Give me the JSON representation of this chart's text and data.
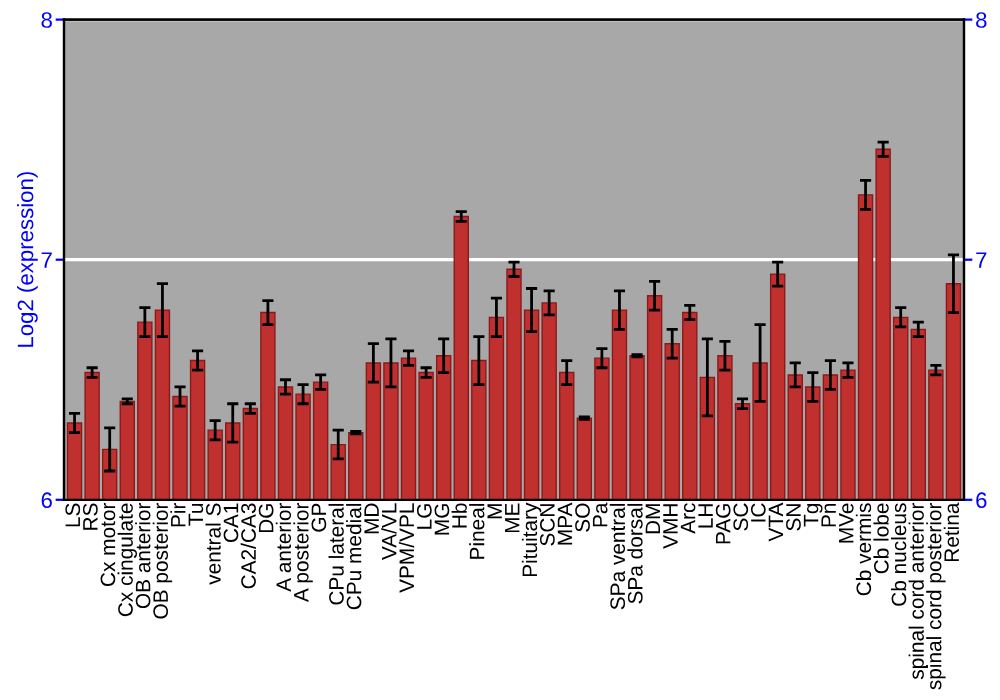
{
  "chart_data": {
    "type": "bar",
    "ylabel": "Log2 (expression)",
    "categories": [
      "LS",
      "RS",
      "Cx motor",
      "Cx cingulate",
      "OB anterior",
      "OB posterior",
      "Pir",
      "Tu",
      "ventral S",
      "CA1",
      "CA2/CA3",
      "DG",
      "A anterior",
      "A posterior",
      "GP",
      "CPu lateral",
      "CPu medial",
      "MD",
      "VA/VL",
      "VPM/VPL",
      "LG",
      "MG",
      "Hb",
      "Pineal",
      "M",
      "ME",
      "Pituitary",
      "SCN",
      "MPA",
      "SO",
      "Pa",
      "SPa ventral",
      "SPa dorsal",
      "DM",
      "VMH",
      "Arc",
      "LH",
      "PAG",
      "SC",
      "IC",
      "VTA",
      "SN",
      "Tg",
      "Pn",
      "MVe",
      "Cb vermis",
      "Cb lobe",
      "Cb nucleus",
      "spinal cord anterior",
      "spinal cord posterior",
      "Retina"
    ],
    "values": [
      6.32,
      6.53,
      6.21,
      6.41,
      6.74,
      6.79,
      6.43,
      6.58,
      6.29,
      6.32,
      6.38,
      6.78,
      6.47,
      6.44,
      6.49,
      6.23,
      6.28,
      6.57,
      6.57,
      6.59,
      6.53,
      6.6,
      7.18,
      6.58,
      6.76,
      6.96,
      6.79,
      6.82,
      6.53,
      6.34,
      6.59,
      6.79,
      6.6,
      6.85,
      6.65,
      6.78,
      6.51,
      6.6,
      6.4,
      6.57,
      6.94,
      6.52,
      6.47,
      6.52,
      6.54,
      7.27,
      7.46,
      6.76,
      6.71,
      6.54,
      6.9
    ],
    "errors": [
      0.04,
      0.02,
      0.09,
      0.01,
      0.06,
      0.11,
      0.04,
      0.04,
      0.04,
      0.08,
      0.02,
      0.05,
      0.03,
      0.04,
      0.03,
      0.06,
      0.005,
      0.08,
      0.1,
      0.03,
      0.02,
      0.07,
      0.02,
      0.1,
      0.08,
      0.03,
      0.09,
      0.05,
      0.05,
      0.005,
      0.04,
      0.08,
      0.005,
      0.06,
      0.06,
      0.03,
      0.16,
      0.06,
      0.02,
      0.16,
      0.05,
      0.05,
      0.06,
      0.06,
      0.03,
      0.06,
      0.03,
      0.04,
      0.03,
      0.02,
      0.12
    ],
    "color": "#c0302f",
    "ylim": [
      6,
      8
    ],
    "yticks": [
      6,
      7,
      8
    ],
    "y2lim": [
      6,
      8
    ],
    "y2ticks": [
      6,
      7,
      8
    ],
    "grid": "y"
  }
}
